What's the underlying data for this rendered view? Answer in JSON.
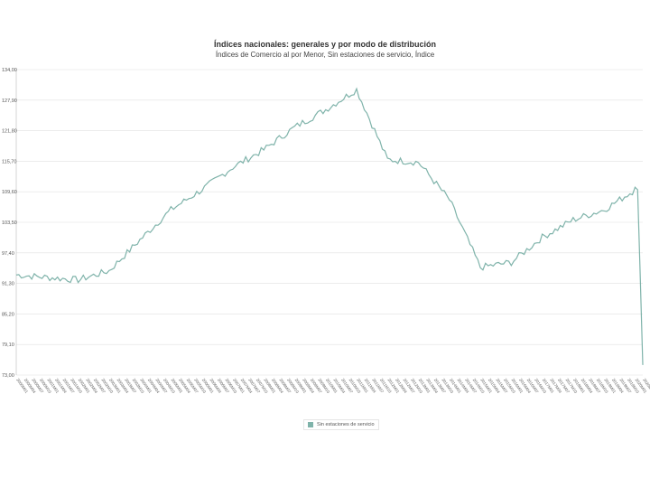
{
  "chart_data": {
    "type": "line",
    "title": "Índices nacionales: generales y por modo de distribución",
    "subtitle": "Índices de Comercio al por Menor, Sin estaciones de servicio, Índice",
    "xlabel": "",
    "ylabel": "",
    "ylim": [
      73.0,
      134.0
    ],
    "y_ticks": [
      "73,00",
      "79,10",
      "85,20",
      "91,30",
      "97,40",
      "103,50",
      "109,60",
      "115,70",
      "121,80",
      "127,90",
      "134,00"
    ],
    "y_tick_values": [
      73.0,
      79.1,
      85.2,
      91.3,
      97.4,
      103.5,
      109.6,
      115.7,
      121.8,
      127.9,
      134.0
    ],
    "grid": "horizontal",
    "legend_position": "bottom-center",
    "colors": {
      "series": "#7fb3aa",
      "grid": "#e0e0e0",
      "axis": "#bbbbbb"
    },
    "x_anchor_labels": [
      "2000M01",
      "2001M01",
      "2002M01",
      "2003M01",
      "2004M01",
      "2005M01",
      "2006M01",
      "2007M01",
      "2008M01",
      "2009M01",
      "2010M01",
      "2011M01",
      "2012M01",
      "2013M01",
      "2014M01",
      "2015M01",
      "2016M01",
      "2017M01",
      "2018M01",
      "2019M01",
      "2020M01",
      "2020M04"
    ],
    "series": [
      {
        "name": "Sin estaciones de servicio",
        "anchors": [
          93.0,
          92.5,
          92.0,
          93.8,
          100.0,
          106.0,
          110.0,
          114.5,
          118.0,
          122.5,
          126.0,
          130.0,
          116.0,
          115.5,
          108.0,
          94.5,
          95.5,
          100.5,
          104.0,
          106.0,
          110.0,
          75.0
        ]
      }
    ]
  }
}
